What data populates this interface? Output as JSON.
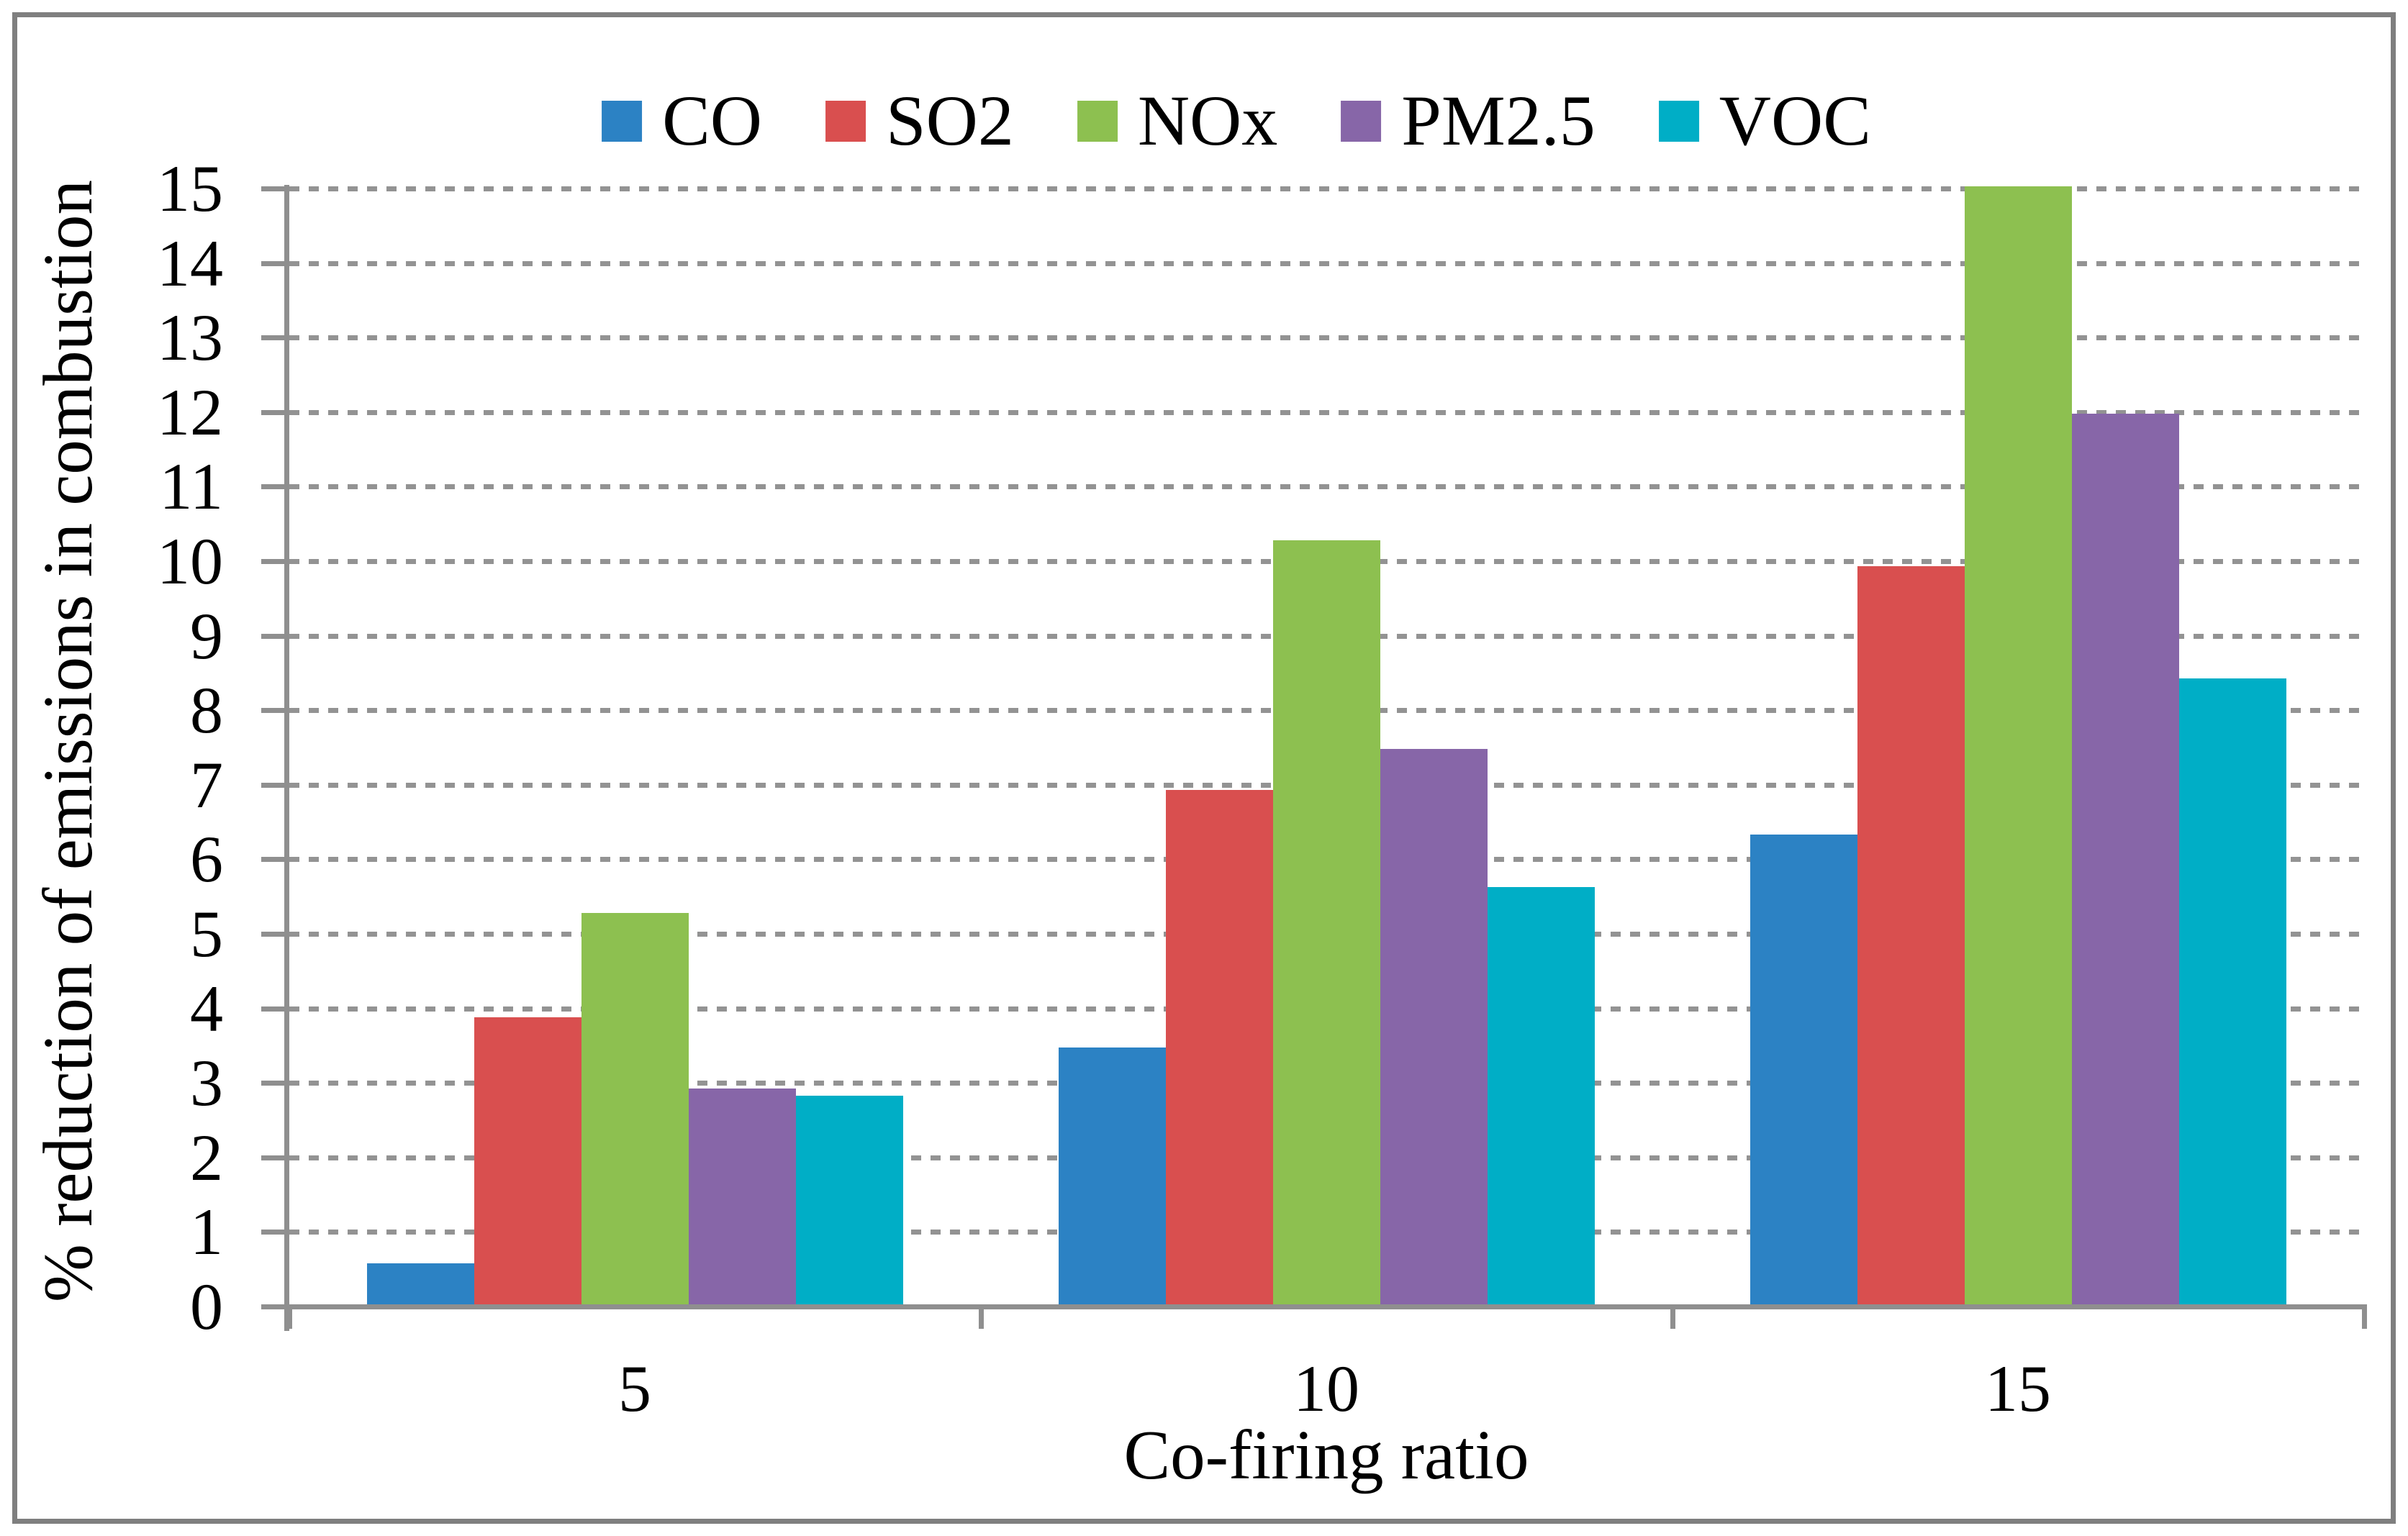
{
  "figure": {
    "background": "#ffffff",
    "border_color": "#7f7f7f"
  },
  "chart_data": {
    "type": "bar",
    "title": "",
    "xlabel": "Co-firing ratio",
    "ylabel": "% reduction of emissions in combustion",
    "categories": [
      "5",
      "10",
      "15"
    ],
    "series": [
      {
        "name": "CO",
        "color": "#2c82c4",
        "values": [
          0.55,
          3.45,
          6.3
        ]
      },
      {
        "name": "SO2",
        "color": "#d94f4f",
        "values": [
          3.85,
          6.9,
          9.9
        ]
      },
      {
        "name": "NOx",
        "color": "#8dc050",
        "values": [
          5.25,
          10.25,
          15
        ]
      },
      {
        "name": "PM2.5",
        "color": "#8766a8",
        "values": [
          2.9,
          7.45,
          11.95
        ]
      },
      {
        "name": "VOC",
        "color": "#00aec6",
        "values": [
          2.8,
          5.6,
          8.4
        ]
      }
    ],
    "ylim": [
      0,
      15
    ],
    "yticks": [
      0,
      1,
      2,
      3,
      4,
      5,
      6,
      7,
      8,
      9,
      10,
      11,
      12,
      13,
      14,
      15
    ],
    "grid": "horizontal-dotted",
    "legend_position": "top-center",
    "axis_color": "#8f8f8f",
    "grid_color": "#939393",
    "text_color": "#000000"
  }
}
